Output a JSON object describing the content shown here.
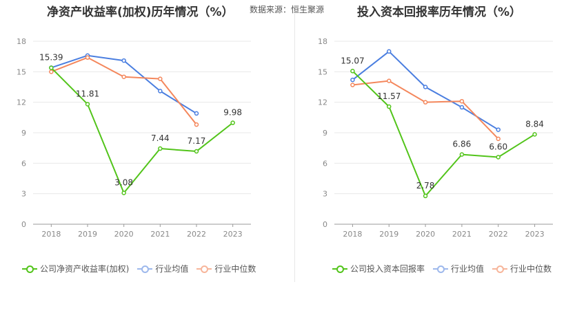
{
  "source_label": "数据来源：恒生聚源",
  "chart_data": [
    {
      "type": "line",
      "title": "净资产收益率(加权)历年情况（%）",
      "x": [
        "2018",
        "2019",
        "2020",
        "2021",
        "2022",
        "2023"
      ],
      "ylim": [
        0,
        18
      ],
      "yticks": [
        "0",
        "3",
        "6",
        "9",
        "12",
        "15",
        "18"
      ],
      "grid": true,
      "legend_position": "bottom",
      "series": [
        {
          "name": "公司净资产收益率(加权)",
          "color": "#52c41a",
          "values": [
            15.39,
            11.81,
            3.08,
            7.44,
            7.17,
            9.98
          ],
          "labels": [
            "15.39",
            "11.81",
            "3.08",
            "7.44",
            "7.17",
            "9.98"
          ]
        },
        {
          "name": "行业均值",
          "color": "#4a7ee0",
          "values": [
            15.4,
            16.6,
            16.1,
            13.1,
            10.9,
            null
          ]
        },
        {
          "name": "行业中位数",
          "color": "#f4875c",
          "values": [
            15.0,
            16.4,
            14.5,
            14.3,
            9.8,
            null
          ]
        }
      ]
    },
    {
      "type": "line",
      "title": "投入资本回报率历年情况（%）",
      "x": [
        "2018",
        "2019",
        "2020",
        "2021",
        "2022",
        "2023"
      ],
      "ylim": [
        0,
        18
      ],
      "yticks": [
        "0",
        "3",
        "6",
        "9",
        "12",
        "15",
        "18"
      ],
      "grid": true,
      "legend_position": "bottom",
      "series": [
        {
          "name": "公司投入资本回报率",
          "color": "#52c41a",
          "values": [
            15.07,
            11.57,
            2.78,
            6.86,
            6.6,
            8.84
          ],
          "labels": [
            "15.07",
            "11.57",
            "2.78",
            "6.86",
            "6.60",
            "8.84"
          ]
        },
        {
          "name": "行业均值",
          "color": "#4a7ee0",
          "values": [
            14.2,
            17.0,
            13.5,
            11.5,
            9.3,
            null
          ]
        },
        {
          "name": "行业中位数",
          "color": "#f4875c",
          "values": [
            13.7,
            14.1,
            12.0,
            12.1,
            8.4,
            null
          ]
        }
      ]
    }
  ]
}
